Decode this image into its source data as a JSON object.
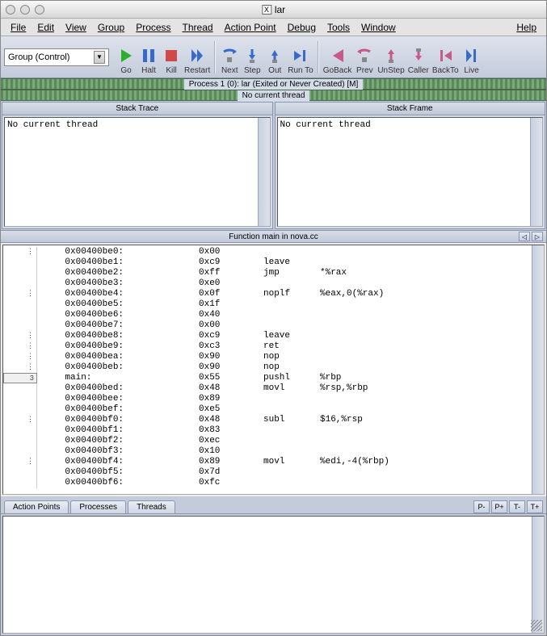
{
  "window": {
    "title": "lar"
  },
  "menu": {
    "items": [
      "File",
      "Edit",
      "View",
      "Group",
      "Process",
      "Thread",
      "Action Point",
      "Debug",
      "Tools",
      "Window"
    ],
    "right": "Help"
  },
  "dropdown": {
    "label": "Group (Control)"
  },
  "toolbar": [
    {
      "label": "Go",
      "color": "#2eae2e",
      "shape": "play"
    },
    {
      "label": "Halt",
      "color": "#3a6ac8",
      "shape": "pause"
    },
    {
      "label": "Kill",
      "color": "#d04848",
      "shape": "stop"
    },
    {
      "label": "Restart",
      "color": "#3a6ac8",
      "shape": "restart"
    },
    {
      "label": "Next",
      "color": "#3a6ac8",
      "shape": "next"
    },
    {
      "label": "Step",
      "color": "#3a6ac8",
      "shape": "step"
    },
    {
      "label": "Out",
      "color": "#3a6ac8",
      "shape": "out"
    },
    {
      "label": "Run To",
      "color": "#3a6ac8",
      "shape": "runto"
    },
    {
      "label": "GoBack",
      "color": "#c85a8a",
      "shape": "goback"
    },
    {
      "label": "Prev",
      "color": "#c85a8a",
      "shape": "prev"
    },
    {
      "label": "UnStep",
      "color": "#c85a8a",
      "shape": "unstep"
    },
    {
      "label": "Caller",
      "color": "#c85a8a",
      "shape": "caller"
    },
    {
      "label": "BackTo",
      "color": "#c85a8a",
      "shape": "backto"
    },
    {
      "label": "Live",
      "color": "#3a6ac8",
      "shape": "live"
    }
  ],
  "status": {
    "process": "Process 1 (0): lar (Exited or Never Created) [M]",
    "thread": "No current thread"
  },
  "panes": {
    "left": {
      "title": "Stack Trace",
      "content": "No current thread"
    },
    "right": {
      "title": "Stack Frame",
      "content": "No current thread"
    }
  },
  "function": {
    "title": "Function main in nova.cc"
  },
  "disasm": [
    {
      "g": "⋮",
      "addr": "0x00400be0:",
      "op": "0x00",
      "m": "",
      "a": ""
    },
    {
      "g": "",
      "addr": "0x00400be1:",
      "op": "0xc9",
      "m": "leave",
      "a": ""
    },
    {
      "g": "",
      "addr": "0x00400be2:",
      "op": "0xff",
      "m": "jmp",
      "a": "*%rax"
    },
    {
      "g": "",
      "addr": "0x00400be3:",
      "op": "0xe0",
      "m": "",
      "a": ""
    },
    {
      "g": "⋮",
      "addr": "0x00400be4:",
      "op": "0x0f",
      "m": "noplf",
      "a": "%eax,0(%rax)"
    },
    {
      "g": "",
      "addr": "0x00400be5:",
      "op": "0x1f",
      "m": "",
      "a": ""
    },
    {
      "g": "",
      "addr": "0x00400be6:",
      "op": "0x40",
      "m": "",
      "a": ""
    },
    {
      "g": "",
      "addr": "0x00400be7:",
      "op": "0x00",
      "m": "",
      "a": ""
    },
    {
      "g": "⋮",
      "addr": "0x00400be8:",
      "op": "0xc9",
      "m": "leave",
      "a": ""
    },
    {
      "g": "⋮",
      "addr": "0x00400be9:",
      "op": "0xc3",
      "m": "ret",
      "a": ""
    },
    {
      "g": "⋮",
      "addr": "0x00400bea:",
      "op": "0x90",
      "m": "nop",
      "a": ""
    },
    {
      "g": "⋮",
      "addr": "0x00400beb:",
      "op": "0x90",
      "m": "nop",
      "a": ""
    },
    {
      "g": "3",
      "addr": "main:",
      "op": "0x55",
      "m": "pushl",
      "a": "%rbp",
      "marker": true
    },
    {
      "g": "",
      "addr": "0x00400bed:",
      "op": "0x48",
      "m": "movl",
      "a": "%rsp,%rbp"
    },
    {
      "g": "",
      "addr": "0x00400bee:",
      "op": "0x89",
      "m": "",
      "a": ""
    },
    {
      "g": "",
      "addr": "0x00400bef:",
      "op": "0xe5",
      "m": "",
      "a": ""
    },
    {
      "g": "⋮",
      "addr": "0x00400bf0:",
      "op": "0x48",
      "m": "subl",
      "a": "$16,%rsp"
    },
    {
      "g": "",
      "addr": "0x00400bf1:",
      "op": "0x83",
      "m": "",
      "a": ""
    },
    {
      "g": "",
      "addr": "0x00400bf2:",
      "op": "0xec",
      "m": "",
      "a": ""
    },
    {
      "g": "",
      "addr": "0x00400bf3:",
      "op": "0x10",
      "m": "",
      "a": ""
    },
    {
      "g": "⋮",
      "addr": "0x00400bf4:",
      "op": "0x89",
      "m": "movl",
      "a": "%edi,-4(%rbp)"
    },
    {
      "g": "",
      "addr": "0x00400bf5:",
      "op": "0x7d",
      "m": "",
      "a": ""
    },
    {
      "g": "",
      "addr": "0x00400bf6:",
      "op": "0xfc",
      "m": "",
      "a": ""
    }
  ],
  "tabs": [
    "Action Points",
    "Processes",
    "Threads"
  ],
  "mini_buttons": [
    "P-",
    "P+",
    "T-",
    "T+"
  ],
  "colors": {
    "chrome_bg": "#d4dce8",
    "border": "#8a96b0",
    "stripe_dark": "#5a8a5a",
    "stripe_light": "#7aaa7a"
  }
}
